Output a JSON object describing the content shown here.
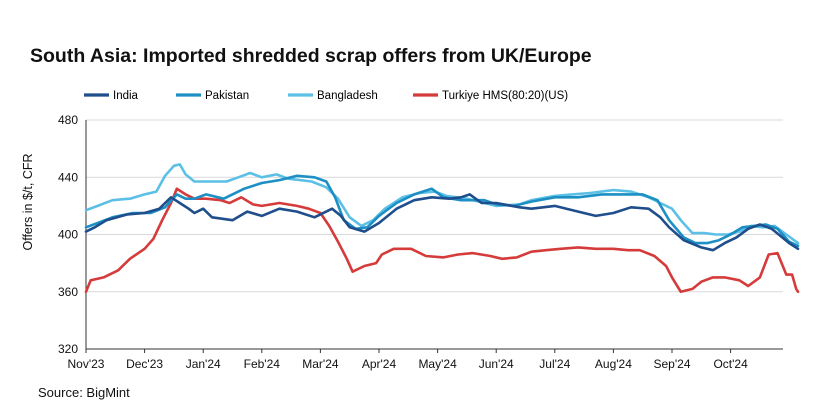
{
  "title": "South Asia: Imported shredded scrap offers from UK/Europe",
  "source": "Source: BigMint",
  "chart_data": {
    "type": "line",
    "title": "South Asia: Imported shredded scrap offers from UK/Europe",
    "ylabel": "Offers in $/t, CFR",
    "xlabel": "",
    "ylim": [
      320,
      480
    ],
    "yticks": [
      320,
      360,
      400,
      440,
      480
    ],
    "x_tick_labels": [
      "Nov'23",
      "Dec'23",
      "Jan'24",
      "Feb'24",
      "Mar'24",
      "Apr'24",
      "May'24",
      "Jun'24",
      "Jul'24",
      "Aug'24",
      "Sep'24",
      "Oct'24"
    ],
    "x_range_months": [
      0,
      12.15
    ],
    "legend_position": "top",
    "grid": "horizontal",
    "series": [
      {
        "name": "India",
        "color": "#1f4e8c",
        "points": [
          [
            0,
            402
          ],
          [
            0.15,
            405
          ],
          [
            0.35,
            410
          ],
          [
            0.7,
            414
          ],
          [
            1.0,
            415
          ],
          [
            1.25,
            418
          ],
          [
            1.45,
            426
          ],
          [
            1.6,
            422
          ],
          [
            1.75,
            418
          ],
          [
            1.85,
            415
          ],
          [
            2.0,
            418
          ],
          [
            2.15,
            412
          ],
          [
            2.5,
            410
          ],
          [
            2.75,
            416
          ],
          [
            3.0,
            413
          ],
          [
            3.3,
            418
          ],
          [
            3.6,
            416
          ],
          [
            3.9,
            412
          ],
          [
            4.2,
            418
          ],
          [
            4.35,
            413
          ],
          [
            4.5,
            405
          ],
          [
            4.75,
            402
          ],
          [
            5.0,
            408
          ],
          [
            5.3,
            418
          ],
          [
            5.6,
            424
          ],
          [
            5.9,
            426
          ],
          [
            6.2,
            425
          ],
          [
            6.4,
            426
          ],
          [
            6.55,
            428
          ],
          [
            6.75,
            422
          ],
          [
            7.0,
            422
          ],
          [
            7.4,
            419
          ],
          [
            7.6,
            418
          ],
          [
            8.0,
            420
          ],
          [
            8.4,
            416
          ],
          [
            8.7,
            413
          ],
          [
            9.0,
            415
          ],
          [
            9.3,
            419
          ],
          [
            9.6,
            418
          ],
          [
            9.8,
            412
          ],
          [
            9.95,
            405
          ],
          [
            10.2,
            396
          ],
          [
            10.5,
            391
          ],
          [
            10.7,
            389
          ],
          [
            10.9,
            394
          ],
          [
            11.1,
            398
          ],
          [
            11.3,
            404
          ],
          [
            11.5,
            407
          ],
          [
            11.7,
            404
          ],
          [
            11.85,
            399
          ],
          [
            12.0,
            394
          ],
          [
            12.15,
            390
          ]
        ]
      },
      {
        "name": "Pakistan",
        "color": "#1d8fc4",
        "points": [
          [
            0,
            405
          ],
          [
            0.2,
            408
          ],
          [
            0.45,
            412
          ],
          [
            0.8,
            415
          ],
          [
            1.1,
            415
          ],
          [
            1.35,
            419
          ],
          [
            1.55,
            428
          ],
          [
            1.7,
            425
          ],
          [
            1.85,
            425
          ],
          [
            2.05,
            428
          ],
          [
            2.35,
            425
          ],
          [
            2.7,
            432
          ],
          [
            3.0,
            436
          ],
          [
            3.3,
            438
          ],
          [
            3.6,
            441
          ],
          [
            3.9,
            440
          ],
          [
            4.1,
            437
          ],
          [
            4.25,
            426
          ],
          [
            4.4,
            410
          ],
          [
            4.6,
            404
          ],
          [
            4.8,
            405
          ],
          [
            5.0,
            413
          ],
          [
            5.3,
            422
          ],
          [
            5.6,
            428
          ],
          [
            5.9,
            432
          ],
          [
            6.1,
            426
          ],
          [
            6.4,
            424
          ],
          [
            6.8,
            424
          ],
          [
            7.0,
            421
          ],
          [
            7.3,
            420
          ],
          [
            7.6,
            423
          ],
          [
            8.0,
            426
          ],
          [
            8.4,
            426
          ],
          [
            8.8,
            428
          ],
          [
            9.2,
            428
          ],
          [
            9.5,
            428
          ],
          [
            9.75,
            424
          ],
          [
            9.95,
            410
          ],
          [
            10.2,
            398
          ],
          [
            10.4,
            394
          ],
          [
            10.6,
            394
          ],
          [
            10.8,
            396
          ],
          [
            11.0,
            400
          ],
          [
            11.2,
            405
          ],
          [
            11.4,
            406
          ],
          [
            11.6,
            407
          ],
          [
            11.8,
            404
          ],
          [
            12.0,
            395
          ],
          [
            12.15,
            392
          ]
        ]
      },
      {
        "name": "Bangladesh",
        "color": "#5cc0e6",
        "points": [
          [
            0,
            417
          ],
          [
            0.2,
            420
          ],
          [
            0.45,
            424
          ],
          [
            0.75,
            425
          ],
          [
            1.0,
            428
          ],
          [
            1.2,
            430
          ],
          [
            1.35,
            441
          ],
          [
            1.5,
            448
          ],
          [
            1.6,
            449
          ],
          [
            1.7,
            442
          ],
          [
            1.85,
            437
          ],
          [
            2.1,
            437
          ],
          [
            2.4,
            437
          ],
          [
            2.6,
            440
          ],
          [
            2.8,
            443
          ],
          [
            3.0,
            440
          ],
          [
            3.25,
            442
          ],
          [
            3.45,
            439
          ],
          [
            3.65,
            438
          ],
          [
            3.85,
            437
          ],
          [
            4.1,
            433
          ],
          [
            4.3,
            425
          ],
          [
            4.5,
            412
          ],
          [
            4.7,
            406
          ],
          [
            4.9,
            410
          ],
          [
            5.1,
            418
          ],
          [
            5.4,
            426
          ],
          [
            5.7,
            429
          ],
          [
            5.95,
            430
          ],
          [
            6.15,
            427
          ],
          [
            6.5,
            425
          ],
          [
            6.8,
            422
          ],
          [
            7.0,
            420
          ],
          [
            7.4,
            421
          ],
          [
            7.6,
            424
          ],
          [
            8.0,
            427
          ],
          [
            8.3,
            428
          ],
          [
            8.6,
            429
          ],
          [
            9.0,
            431
          ],
          [
            9.3,
            430
          ],
          [
            9.6,
            426
          ],
          [
            9.8,
            422
          ],
          [
            10.0,
            418
          ],
          [
            10.15,
            410
          ],
          [
            10.35,
            401
          ],
          [
            10.55,
            401
          ],
          [
            10.75,
            400
          ],
          [
            10.95,
            400
          ],
          [
            11.15,
            402
          ],
          [
            11.35,
            406
          ],
          [
            11.55,
            405
          ],
          [
            11.75,
            406
          ],
          [
            11.95,
            400
          ],
          [
            12.15,
            394
          ]
        ]
      },
      {
        "name": "Turkiye HMS(80:20)(US)",
        "color": "#d53b3b",
        "points": [
          [
            0,
            360
          ],
          [
            0.08,
            368
          ],
          [
            0.3,
            370
          ],
          [
            0.55,
            375
          ],
          [
            0.75,
            383
          ],
          [
            1.0,
            390
          ],
          [
            1.15,
            397
          ],
          [
            1.3,
            410
          ],
          [
            1.45,
            422
          ],
          [
            1.55,
            432
          ],
          [
            1.7,
            428
          ],
          [
            1.85,
            425
          ],
          [
            2.05,
            425
          ],
          [
            2.3,
            424
          ],
          [
            2.45,
            422
          ],
          [
            2.65,
            426
          ],
          [
            2.85,
            421
          ],
          [
            3.0,
            420
          ],
          [
            3.3,
            422
          ],
          [
            3.6,
            420
          ],
          [
            3.8,
            418
          ],
          [
            4.0,
            415
          ],
          [
            4.15,
            406
          ],
          [
            4.3,
            395
          ],
          [
            4.45,
            383
          ],
          [
            4.55,
            374
          ],
          [
            4.75,
            378
          ],
          [
            4.95,
            380
          ],
          [
            5.05,
            386
          ],
          [
            5.25,
            390
          ],
          [
            5.55,
            390
          ],
          [
            5.8,
            385
          ],
          [
            6.1,
            384
          ],
          [
            6.35,
            386
          ],
          [
            6.6,
            387
          ],
          [
            6.9,
            385
          ],
          [
            7.1,
            383
          ],
          [
            7.35,
            384
          ],
          [
            7.6,
            388
          ],
          [
            7.85,
            389
          ],
          [
            8.1,
            390
          ],
          [
            8.4,
            391
          ],
          [
            8.7,
            390
          ],
          [
            9.0,
            390
          ],
          [
            9.25,
            389
          ],
          [
            9.45,
            389
          ],
          [
            9.7,
            385
          ],
          [
            9.9,
            378
          ],
          [
            10.0,
            370
          ],
          [
            10.15,
            360
          ],
          [
            10.35,
            362
          ],
          [
            10.5,
            367
          ],
          [
            10.7,
            370
          ],
          [
            10.9,
            370
          ],
          [
            11.15,
            368
          ],
          [
            11.3,
            364
          ],
          [
            11.5,
            370
          ],
          [
            11.65,
            386
          ],
          [
            11.8,
            387
          ],
          [
            11.95,
            372
          ],
          [
            12.05,
            372
          ],
          [
            12.12,
            362
          ],
          [
            12.15,
            360
          ]
        ]
      }
    ]
  }
}
